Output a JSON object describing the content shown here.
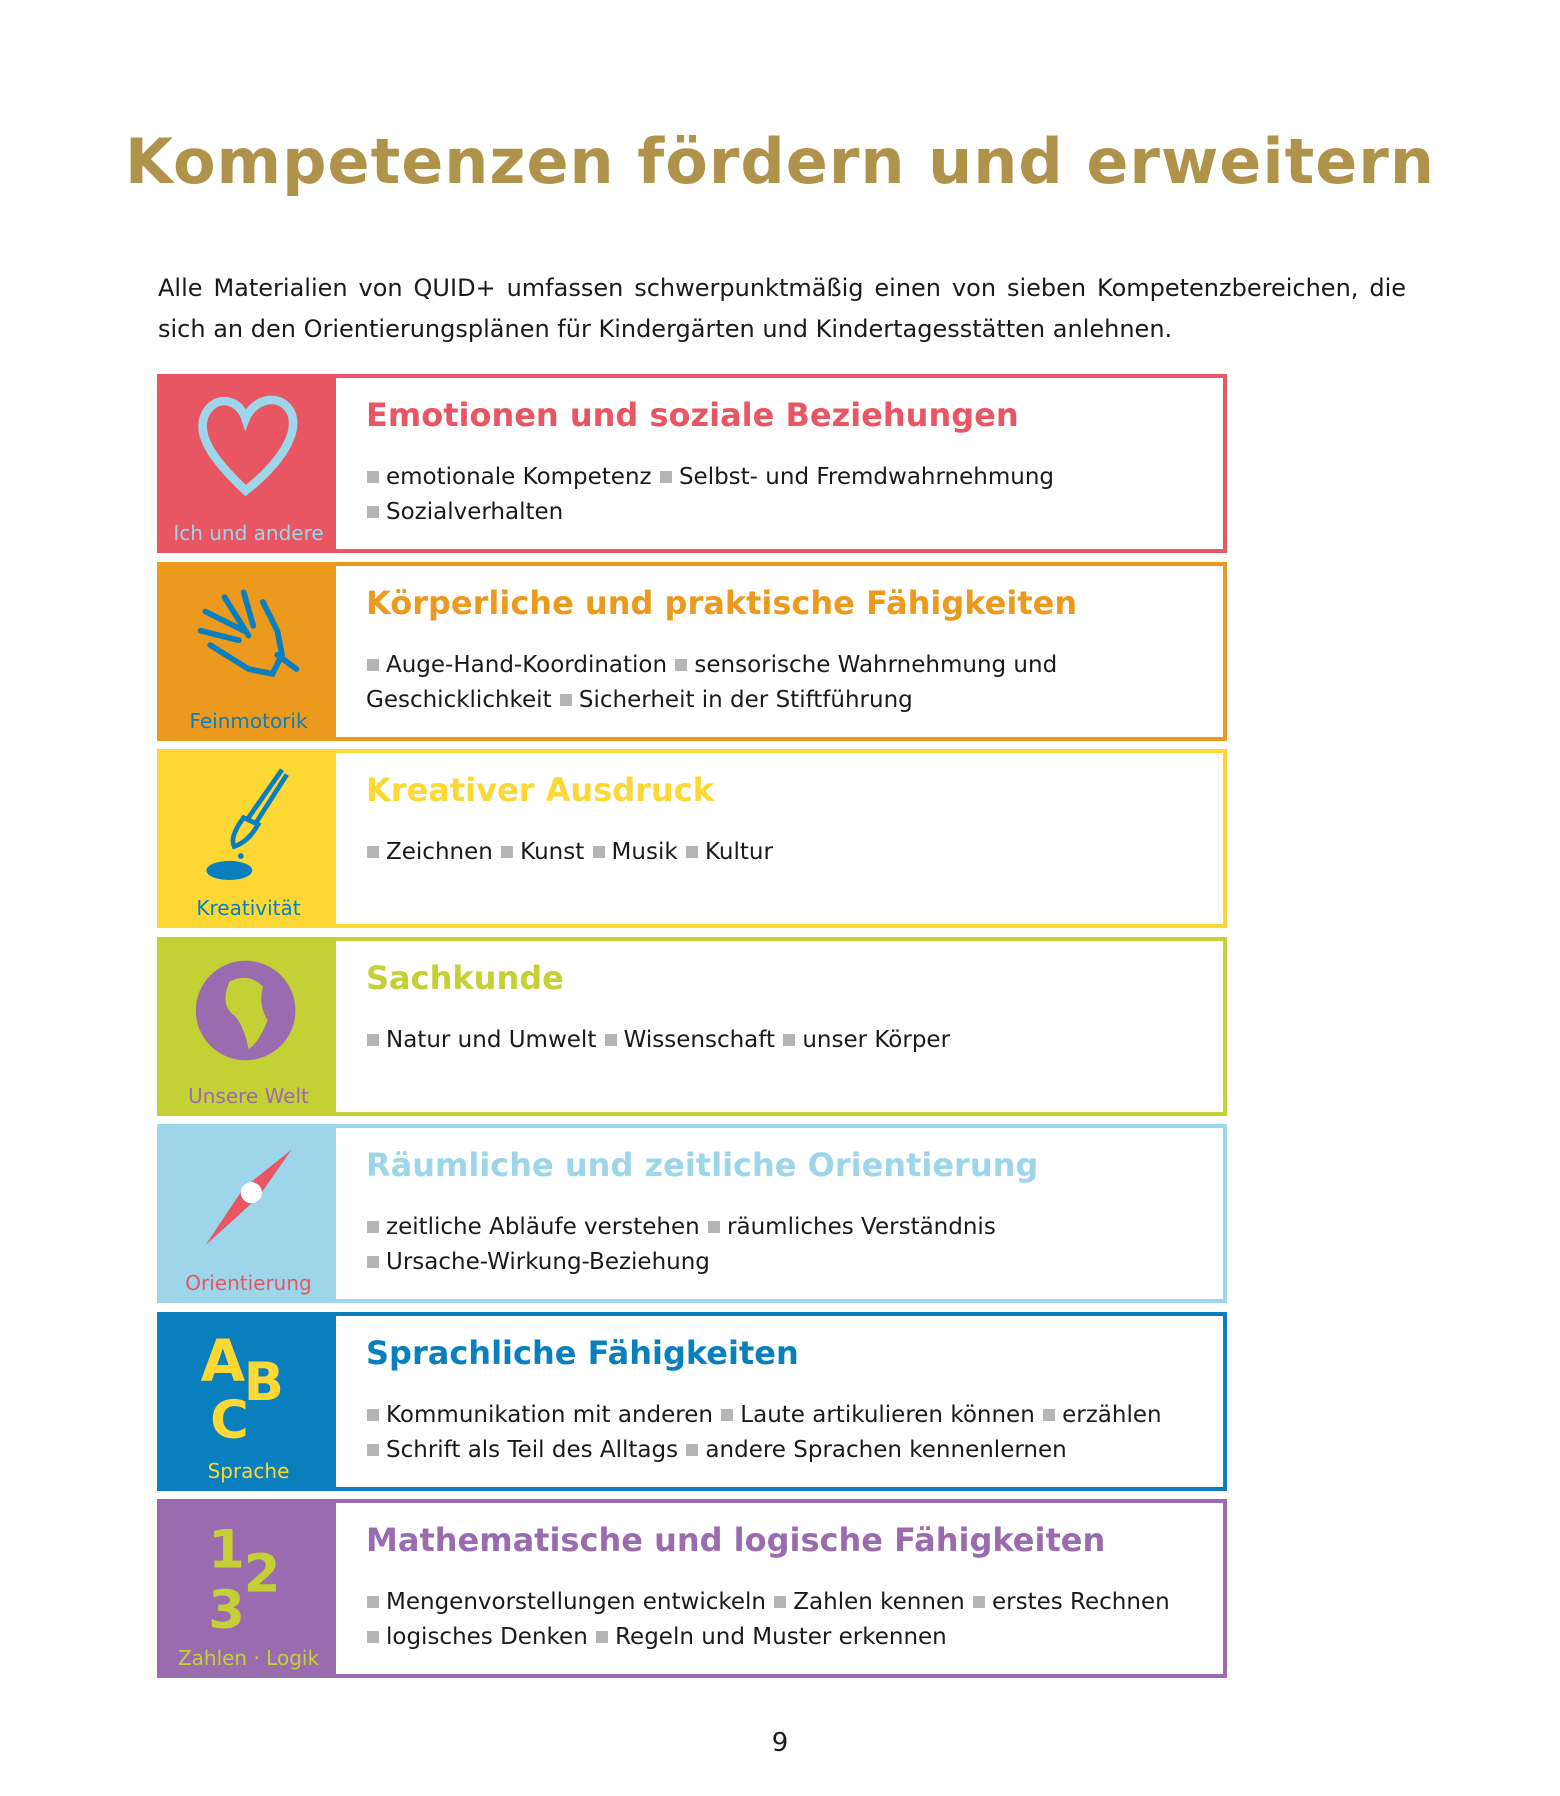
{
  "title": "Kompetenzen fördern und erweitern",
  "intro": "Alle Materialien von QUID+ umfassen schwerpunktmäßig einen von sieben Kompetenzbereichen, die sich an den Orientierungsplänen für Kindergärten und Kindertagesstätten anlehnen.",
  "rows": [
    {
      "label": "Ich und andere",
      "icon": "heart-icon",
      "heading": "Emotionen und soziale Beziehungen",
      "color": "#e85563",
      "labelColor": "#9dd6ea",
      "lines": [
        [
          "emotionale Kompetenz",
          "Selbst- und Fremdwahrnehmung"
        ],
        [
          "Sozialverhalten"
        ]
      ]
    },
    {
      "label": "Feinmotorik",
      "icon": "hand-icon",
      "heading": "Körperliche und praktische Fähigkeiten",
      "color": "#ec9a1e",
      "labelColor": "#0a7fbe",
      "lines": [
        [
          "Auge-Hand-Koordination",
          "sensorische Wahrnehmung und Geschicklichkeit",
          "Sicherheit in der Stiftführung"
        ]
      ]
    },
    {
      "label": "Kreativität",
      "icon": "paintbrush-icon",
      "heading": "Kreativer Ausdruck",
      "color": "#fdd835",
      "labelColor": "#0a7fbe",
      "lines": [
        [
          "Zeichnen",
          "Kunst",
          "Musik",
          "Kultur"
        ]
      ]
    },
    {
      "label": "Unsere Welt",
      "icon": "globe-icon",
      "heading": "Sachkunde",
      "color": "#c3d134",
      "labelColor": "#9b6bb0",
      "lines": [
        [
          "Natur und Umwelt",
          "Wissenschaft",
          "unser Körper"
        ]
      ]
    },
    {
      "label": "Orientierung",
      "icon": "compass-icon",
      "heading": "Räumliche und zeitliche Orientierung",
      "color": "#9dd6ea",
      "labelColor": "#e85563",
      "lines": [
        [
          "zeitliche Abläufe verstehen",
          "räumliches Verständnis"
        ],
        [
          "Ursache-Wirkung-Beziehung"
        ]
      ]
    },
    {
      "label": "Sprache",
      "icon": "abc-icon",
      "heading": "Sprachliche Fähigkeiten",
      "color": "#0a7fbe",
      "labelColor": "#fdd835",
      "lines": [
        [
          "Kommunikation mit anderen",
          "Laute artikulieren können",
          "erzählen"
        ],
        [
          "Schrift als Teil des Alltags",
          "andere Sprachen kennenlernen"
        ]
      ]
    },
    {
      "label": "Zahlen · Logik",
      "icon": "numbers-icon",
      "heading": "Mathematische und logische Fähigkeiten",
      "color": "#9b6bb0",
      "labelColor": "#c3d134",
      "lines": [
        [
          "Mengenvorstellungen entwickeln",
          "Zahlen kennen",
          "erstes Rechnen"
        ],
        [
          "logisches Denken",
          "Regeln und Muster erkennen"
        ]
      ]
    }
  ],
  "page_number": "9"
}
